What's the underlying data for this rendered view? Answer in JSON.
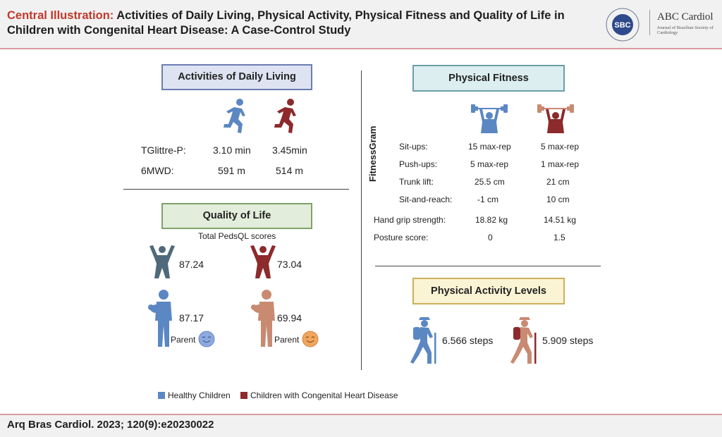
{
  "header": {
    "title_lead": "Central Illustration:",
    "title_line1": "Activities of Daily Living, Physical Activity, Physical Fitness and Quality of Life in",
    "title_line2": "Children with Congenital Heart Disease: A Case-Control Study",
    "logo_text": "SBC",
    "logo_ring_text": "SOCIEDADE BRASILEIRA DE CARDIOLOGIA",
    "journal_name": "ABC Cardiol",
    "journal_subtitle": "Journal of Brazilian Society of Cardiology"
  },
  "colors": {
    "healthy": "#5b87c3",
    "chd": "#8c2a2c",
    "parent_chd": "#c98a72",
    "accent": "#c0392b"
  },
  "adl": {
    "title": "Activities of Daily Living",
    "rows": [
      {
        "label": "TGlittre-P:",
        "healthy": "3.10 min",
        "chd": "3.45min"
      },
      {
        "label": "6MWD:",
        "healthy": "591 m",
        "chd": "514 m"
      }
    ],
    "icon": "running-person-icon"
  },
  "qol": {
    "title": "Quality of Life",
    "subtitle": "Total PedsQL scores",
    "child_healthy": "87.24",
    "child_chd": "73.04",
    "parent_healthy": "87.17",
    "parent_chd": "69.94",
    "parent_label": "Parent"
  },
  "fitness": {
    "title": "Physical Fitness",
    "group_label": "FitnessGram",
    "icon": "weightlifter-icon",
    "rows": [
      {
        "label": "Sit-ups:",
        "healthy": "15 max-rep",
        "chd": "5 max-rep"
      },
      {
        "label": "Push-ups:",
        "healthy": "5 max-rep",
        "chd": "1 max-rep"
      },
      {
        "label": "Trunk lift:",
        "healthy": "25.5 cm",
        "chd": "21 cm"
      },
      {
        "label": "Sit-and-reach:",
        "healthy": "-1 cm",
        "chd": "10 cm"
      }
    ],
    "extra_rows": [
      {
        "label": "Hand grip strength:",
        "healthy": "18.82 kg",
        "chd": "14.51 kg"
      },
      {
        "label": "Posture score:",
        "healthy": "0",
        "chd": "1.5"
      }
    ]
  },
  "activity": {
    "title": "Physical Activity Levels",
    "healthy": "6.566 steps",
    "chd": "5.909 steps",
    "icon": "hiker-icon"
  },
  "legend": {
    "healthy": "Healthy Children",
    "chd": "Children with Congenital Heart Disease"
  },
  "footer": {
    "citation": "Arq Bras Cardiol. 2023; 120(9):e20230022"
  }
}
